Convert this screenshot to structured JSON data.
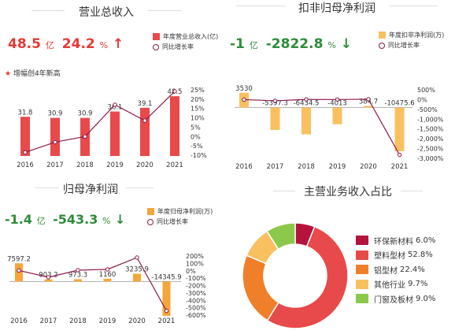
{
  "colors": {
    "red": "#e8494b",
    "orange": "#f5a53a",
    "line": "#8b1a4a",
    "up": "#e53935",
    "down": "#2e8b3a"
  },
  "revenue": {
    "title": "营业总收入",
    "kpi_value": "48.5",
    "kpi_unit": "亿",
    "kpi_pct": "24.2",
    "kpi_pct_unit": "%",
    "arrow": "↑",
    "arrow_icon": "up-arrow-icon",
    "legend_bar": "年度营业总收入(亿)",
    "legend_line": "同比增长率",
    "note_icon": "star-icon",
    "note": "增幅创4年新高"
  },
  "nonrecurring": {
    "title": "扣非归母净利润",
    "kpi_value": "-1",
    "kpi_unit": "亿",
    "kpi_pct": "-2822.8",
    "kpi_pct_unit": "%",
    "arrow": "↓",
    "arrow_icon": "down-arrow-icon",
    "legend_bar": "年度扣非净利润(万)",
    "legend_line": "同比增长率"
  },
  "netprofit": {
    "title": "归母净利润",
    "kpi_value": "-1.4",
    "kpi_unit": "亿",
    "kpi_pct": "-543.3",
    "kpi_pct_unit": "%",
    "arrow": "↓",
    "arrow_icon": "down-arrow-icon",
    "legend_bar": "年度归母净利润(万)",
    "legend_line": "同比增长率"
  },
  "business": {
    "title": "主营业务收入占比"
  },
  "chart_data": [
    {
      "type": "bar",
      "title": "营业总收入",
      "categories": [
        "2016",
        "2017",
        "2018",
        "2019",
        "2020",
        "2021"
      ],
      "series": [
        {
          "name": "年度营业总收入(亿)",
          "values": [
            31.8,
            30.9,
            30.9,
            36.1,
            39.1,
            48.5
          ],
          "data_labels": [
            "31.8",
            "30.9",
            "30.9",
            "36.1",
            "39.1",
            "48.5"
          ]
        },
        {
          "name": "同比增长率",
          "type": "line",
          "values": [
            -8.5,
            -3.0,
            0.0,
            17.0,
            8.5,
            24.2
          ]
        }
      ],
      "ylim_bar": [
        0,
        55
      ],
      "y2ticks": [
        "25%",
        "20%",
        "15%",
        "10%",
        "5%",
        "0%",
        "-5%",
        "-10%"
      ],
      "y2lim": [
        -10,
        25
      ]
    },
    {
      "type": "bar",
      "title": "扣非归母净利润",
      "categories": [
        "2016",
        "2017",
        "2018",
        "2019",
        "2020",
        "2021"
      ],
      "series": [
        {
          "name": "年度扣非净利润(万)",
          "values": [
            3530,
            -5397.3,
            -6434.5,
            -4013,
            384.7,
            -10475.6
          ],
          "data_labels": [
            "3530",
            "-5397.3",
            "-6434.5",
            "-4013",
            "384.7",
            "-10475.6"
          ]
        },
        {
          "name": "同比增长率",
          "type": "line",
          "values": [
            0,
            -60,
            10,
            5,
            20,
            -2822.8
          ]
        }
      ],
      "ylim_bar": [
        -12000,
        5000
      ],
      "y2ticks": [
        "500%",
        "0%",
        "-500%",
        "-1,000%",
        "-1,500%",
        "-2,000%",
        "-2,500%",
        "-3,000%"
      ],
      "y2lim": [
        -3000,
        500
      ]
    },
    {
      "type": "bar",
      "title": "归母净利润",
      "categories": [
        "2016",
        "2017",
        "2018",
        "2019",
        "2020",
        "2021"
      ],
      "series": [
        {
          "name": "年度归母净利润(万)",
          "values": [
            7597.2,
            903.2,
            973.3,
            1160,
            3235.9,
            -14345.9
          ],
          "data_labels": [
            "7597.2",
            "903.2",
            "973.3",
            "1160",
            "3235.9",
            "-14345.9"
          ]
        },
        {
          "name": "同比增长率",
          "type": "line",
          "values": [
            5,
            -88,
            8,
            19,
            179,
            -543.3
          ]
        }
      ],
      "ylim_bar": [
        -16000,
        9000
      ],
      "y2ticks": [
        "200%",
        "100%",
        "0%",
        "-100%",
        "-200%",
        "-300%",
        "-400%",
        "-500%",
        "-600%"
      ],
      "y2lim": [
        -600,
        200
      ]
    },
    {
      "type": "pie",
      "title": "主营业务收入占比",
      "labels": [
        "环保新材料",
        "塑料型材",
        "铝型材",
        "其他行业",
        "门窗及板材"
      ],
      "values": [
        6.0,
        52.8,
        22.4,
        9.7,
        9.0
      ],
      "value_labels": [
        "6.0%",
        "52.8%",
        "22.4%",
        "9.7%",
        "9.0%"
      ],
      "colors": [
        "#b5133c",
        "#e8494b",
        "#f07f2a",
        "#f9c060",
        "#8cc84b"
      ]
    }
  ]
}
